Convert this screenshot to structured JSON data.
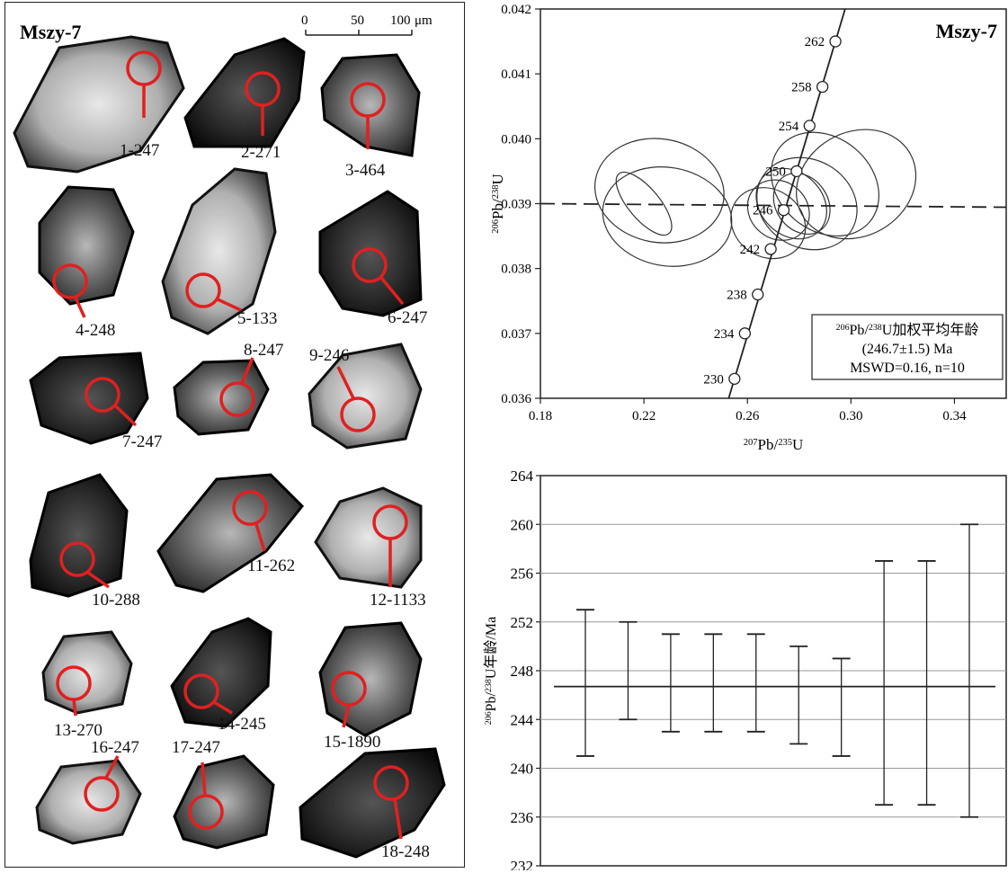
{
  "panel_a": {
    "sample_label": "Mszy-7",
    "scale_bar": {
      "ticks": [
        "0",
        "50",
        "100"
      ],
      "unit": "μm"
    },
    "grain_labels": [
      "1-247",
      "2-271",
      "3-464",
      "4-248",
      "5-133",
      "6-247",
      "7-247",
      "8-247",
      "9-246",
      "10-288",
      "11-262",
      "12-1133",
      "13-270",
      "14-245",
      "15-1890",
      "16-247",
      "17-247",
      "18-248"
    ]
  },
  "colors": {
    "spot": "#e02020",
    "line": "#222222",
    "grid": "#9a9a9a"
  },
  "chart_data": [
    {
      "type": "scatter",
      "title": "Mszy-7",
      "xlabel": "207Pb/235U",
      "ylabel": "206Pb/238U",
      "xlim": [
        0.18,
        0.36
      ],
      "ylim": [
        0.036,
        0.042
      ],
      "x_ticks": [
        "0.18",
        "0.22",
        "0.26",
        "0.30",
        "0.34"
      ],
      "y_ticks": [
        "0.036",
        "0.037",
        "0.038",
        "0.039",
        "0.040",
        "0.041",
        "0.042"
      ],
      "concordia_ages": [
        {
          "age": "230",
          "x": 0.255,
          "y": 0.0363
        },
        {
          "age": "234",
          "x": 0.259,
          "y": 0.037
        },
        {
          "age": "238",
          "x": 0.264,
          "y": 0.0376
        },
        {
          "age": "242",
          "x": 0.269,
          "y": 0.0383
        },
        {
          "age": "246",
          "x": 0.274,
          "y": 0.0389
        },
        {
          "age": "250",
          "x": 0.279,
          "y": 0.0395
        },
        {
          "age": "254",
          "x": 0.284,
          "y": 0.0402
        },
        {
          "age": "258",
          "x": 0.289,
          "y": 0.0408
        },
        {
          "age": "262",
          "x": 0.294,
          "y": 0.0415
        }
      ],
      "weighted_mean_line_y": 0.039,
      "ellipses": [
        {
          "cx": 0.226,
          "cy": 0.0392,
          "rx": 0.02,
          "ry": 0.001,
          "angle": -80
        },
        {
          "cx": 0.229,
          "cy": 0.0388,
          "rx": 0.019,
          "ry": 0.001,
          "angle": -80
        },
        {
          "cx": 0.22,
          "cy": 0.039,
          "rx": 0.006,
          "ry": 0.0006,
          "angle": -40
        },
        {
          "cx": 0.268,
          "cy": 0.0387,
          "rx": 0.013,
          "ry": 0.0006,
          "angle": -55
        },
        {
          "cx": 0.272,
          "cy": 0.0389,
          "rx": 0.011,
          "ry": 0.0005,
          "angle": -50
        },
        {
          "cx": 0.277,
          "cy": 0.039,
          "rx": 0.012,
          "ry": 0.0006,
          "angle": -45
        },
        {
          "cx": 0.283,
          "cy": 0.039,
          "rx": 0.017,
          "ry": 0.0008,
          "angle": -60
        },
        {
          "cx": 0.29,
          "cy": 0.0393,
          "rx": 0.018,
          "ry": 0.0009,
          "angle": -50
        },
        {
          "cx": 0.302,
          "cy": 0.0393,
          "rx": 0.024,
          "ry": 0.0008,
          "angle": -30
        },
        {
          "cx": 0.281,
          "cy": 0.039,
          "rx": 0.01,
          "ry": 0.0005,
          "angle": -35
        }
      ],
      "legend": {
        "line1": "206Pb/238U加权平均年龄",
        "line2": "(246.7±1.5) Ma",
        "line3": "MSWD=0.16, n=10"
      }
    },
    {
      "type": "bar",
      "xlabel": "",
      "ylabel": "206Pb/238U年龄/Ma",
      "ylim": [
        232,
        264
      ],
      "y_ticks": [
        "232",
        "236",
        "240",
        "244",
        "248",
        "252",
        "256",
        "260",
        "264"
      ],
      "mean": 246.7,
      "error_bars": [
        {
          "low": 241,
          "high": 253
        },
        {
          "low": 244,
          "high": 252
        },
        {
          "low": 243,
          "high": 251
        },
        {
          "low": 243,
          "high": 251
        },
        {
          "low": 243,
          "high": 251
        },
        {
          "low": 242,
          "high": 250
        },
        {
          "low": 241,
          "high": 249
        },
        {
          "low": 237,
          "high": 257
        },
        {
          "low": 237,
          "high": 257
        },
        {
          "low": 236,
          "high": 260
        }
      ]
    }
  ]
}
